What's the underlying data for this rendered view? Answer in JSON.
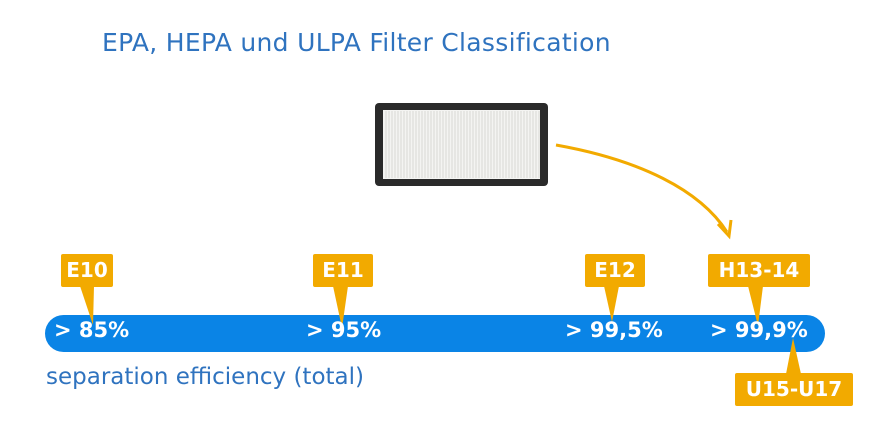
{
  "title": "EPA, HEPA und ULPA Filter Classification",
  "subtitle": "separation efficiency (total)",
  "colors": {
    "bar": "#0a84e6",
    "tag": "#f2aa00",
    "text": "#2f73bf"
  },
  "levels": [
    {
      "class": "E10",
      "efficiency": "> 85%"
    },
    {
      "class": "E11",
      "efficiency": "> 95%"
    },
    {
      "class": "E12",
      "efficiency": "> 99,5%"
    },
    {
      "class": "H13-14",
      "efficiency": "> 99,9%"
    }
  ],
  "ulpa": {
    "class": "U15-U17"
  },
  "image": "hepa-filter-photo"
}
